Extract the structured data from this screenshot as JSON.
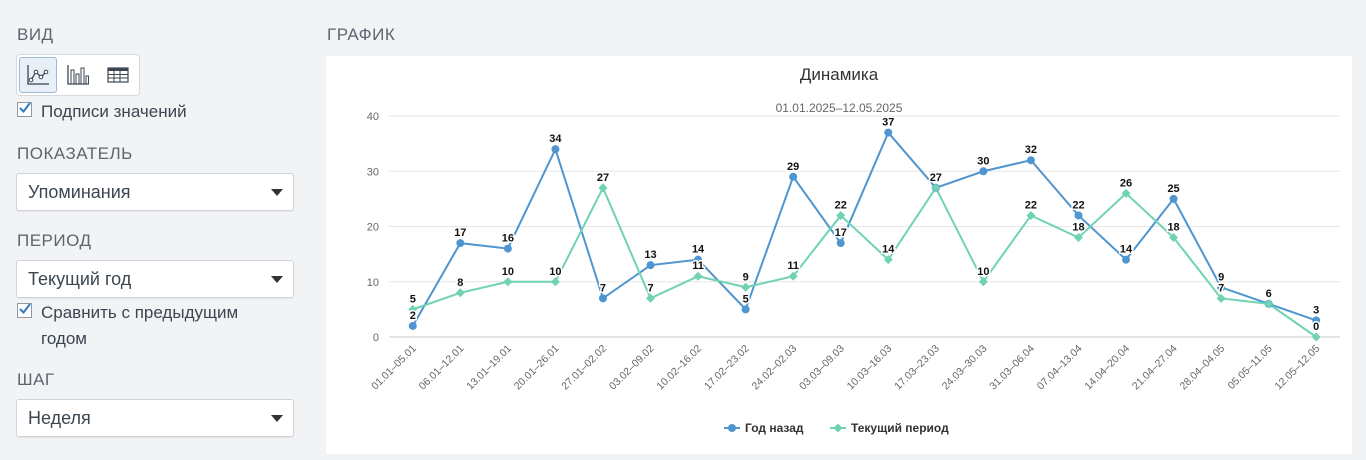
{
  "sidebar": {
    "view_title": "ВИД",
    "view_buttons": [
      {
        "icon": "line-chart-icon",
        "active": true
      },
      {
        "icon": "bar-chart-icon",
        "active": false
      },
      {
        "icon": "table-icon",
        "active": false
      }
    ],
    "value_labels": {
      "label": "Подписи значений",
      "checked": true
    },
    "metric_title": "ПОКАЗАТЕЛЬ",
    "metric_value": "Упоминания",
    "period_title": "ПЕРИОД",
    "period_value": "Текущий год",
    "compare": {
      "label_line1": "Сравнить с предыдущим",
      "label_line2": "годом",
      "checked": true
    },
    "step_title": "ШАГ",
    "step_value": "Неделя"
  },
  "main": {
    "chart_section_title": "ГРАФИК"
  },
  "colors": {
    "prev_year": "#4f95cf",
    "current": "#6fd3b3",
    "accent_check": "#2b7bbf"
  },
  "chart_data": {
    "type": "line",
    "title": "Динамика",
    "subtitle": "01.01.2025–12.05.2025",
    "xlabel": "",
    "ylabel": "",
    "ylim": [
      0,
      40
    ],
    "yticks": [
      0,
      10,
      20,
      30,
      40
    ],
    "grid": true,
    "legend_position": "bottom",
    "categories": [
      "01.01–05.01",
      "06.01–12.01",
      "13.01–19.01",
      "20.01–26.01",
      "27.01–02.02",
      "03.02–09.02",
      "10.02–16.02",
      "17.02–23.02",
      "24.02–02.03",
      "03.03–09.03",
      "10.03–16.03",
      "17.03–23.03",
      "24.03–30.03",
      "31.03–06.04",
      "07.04–13.04",
      "14.04–20.04",
      "21.04–27.04",
      "28.04–04.05",
      "05.05–11.05",
      "12.05–12.05"
    ],
    "series": [
      {
        "name": "Год назад",
        "marker": "circle",
        "values": [
          2,
          17,
          16,
          34,
          7,
          13,
          14,
          5,
          29,
          17,
          37,
          27,
          30,
          32,
          22,
          14,
          25,
          9,
          6,
          3
        ]
      },
      {
        "name": "Текущий период",
        "marker": "diamond",
        "values": [
          5,
          8,
          10,
          10,
          27,
          7,
          11,
          9,
          11,
          22,
          14,
          27,
          10,
          22,
          18,
          26,
          18,
          7,
          6,
          0
        ]
      }
    ]
  }
}
